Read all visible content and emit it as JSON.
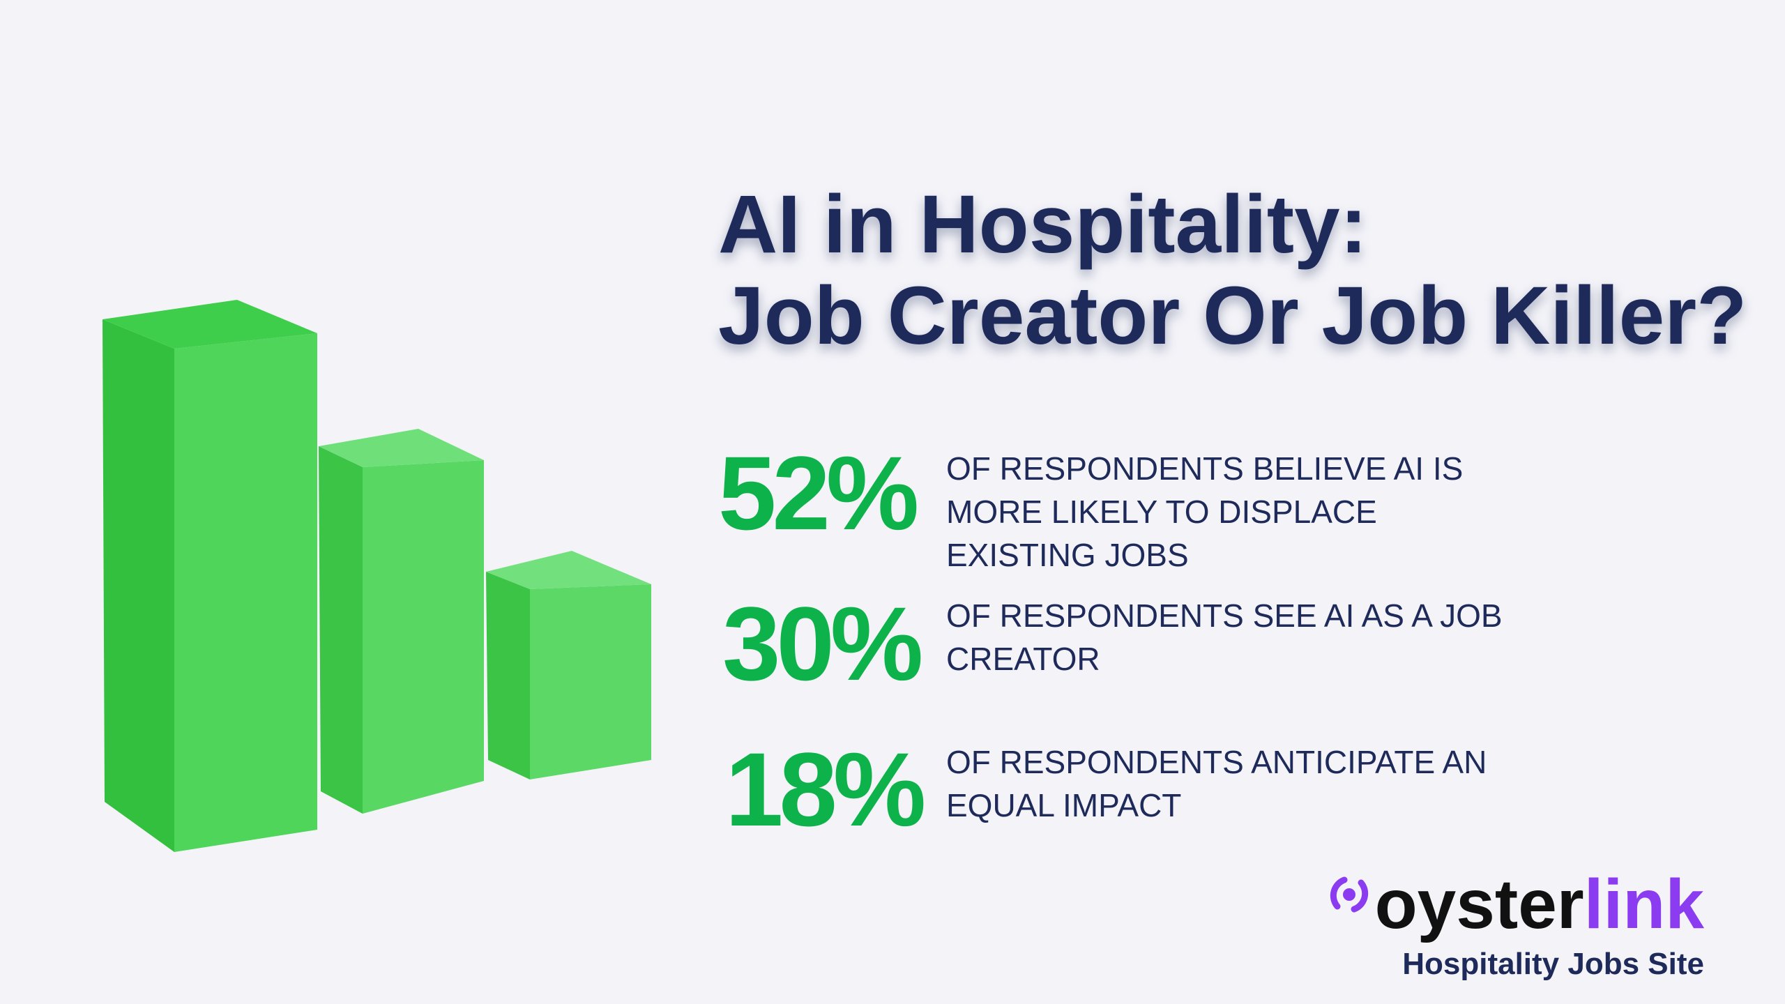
{
  "header": {
    "title_lines": [
      "AI in Hospitality:",
      "Job Creator Or Job Killer?"
    ]
  },
  "stats": [
    {
      "figure": "52%",
      "lines": [
        "OF RESPONDENTS BELIEVE AI IS",
        "MORE LIKELY TO DISPLACE",
        "EXISTING JOBS"
      ]
    },
    {
      "figure": "30%",
      "lines": [
        "OF RESPONDENTS SEE AI AS A JOB",
        "CREATOR"
      ]
    },
    {
      "figure": "18%",
      "lines": [
        "OF RESPONDENTS ANTICIPATE AN",
        "EQUAL IMPACT"
      ]
    }
  ],
  "brand": {
    "name_dark": "oyster",
    "name_accent": "link",
    "tagline": "Hospitality Jobs Site"
  }
}
